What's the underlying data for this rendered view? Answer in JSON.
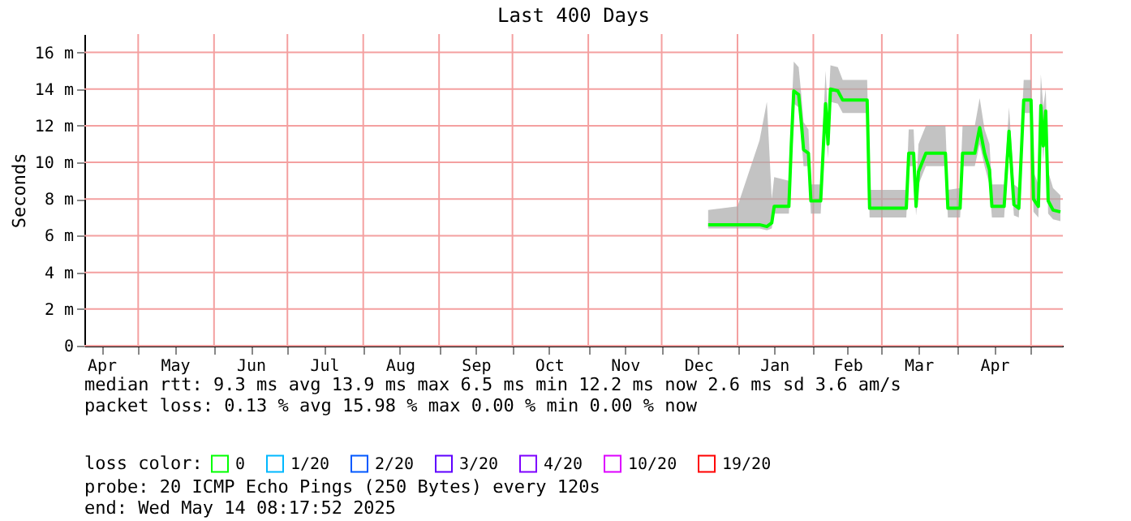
{
  "chart_data": {
    "type": "line",
    "title": "Last 400 Days",
    "ylabel": "Seconds",
    "legend_title": "loss color:",
    "legend": "bottom",
    "grid": true,
    "xlim": [
      "2024-04-09",
      "2025-05-14"
    ],
    "xticks": [
      {
        "value": "2024-04-16",
        "label": "Apr"
      },
      {
        "value": "2024-05-01",
        "label": null
      },
      {
        "value": "2024-05-16",
        "label": "May"
      },
      {
        "value": "2024-06-01",
        "label": null
      },
      {
        "value": "2024-06-16",
        "label": "Jun"
      },
      {
        "value": "2024-07-01",
        "label": null
      },
      {
        "value": "2024-07-16",
        "label": "Jul"
      },
      {
        "value": "2024-08-01",
        "label": null
      },
      {
        "value": "2024-08-16",
        "label": "Aug"
      },
      {
        "value": "2024-09-01",
        "label": null
      },
      {
        "value": "2024-09-16",
        "label": "Sep"
      },
      {
        "value": "2024-10-01",
        "label": null
      },
      {
        "value": "2024-10-16",
        "label": "Oct"
      },
      {
        "value": "2024-11-01",
        "label": null
      },
      {
        "value": "2024-11-16",
        "label": "Nov"
      },
      {
        "value": "2024-12-01",
        "label": null
      },
      {
        "value": "2024-12-16",
        "label": "Dec"
      },
      {
        "value": "2025-01-01",
        "label": null
      },
      {
        "value": "2025-01-16",
        "label": "Jan"
      },
      {
        "value": "2025-02-01",
        "label": null
      },
      {
        "value": "2025-02-15",
        "label": "Feb"
      },
      {
        "value": "2025-03-01",
        "label": null
      },
      {
        "value": "2025-03-16",
        "label": "Mar"
      },
      {
        "value": "2025-04-01",
        "label": null
      },
      {
        "value": "2025-04-16",
        "label": "Apr"
      },
      {
        "value": "2025-05-01",
        "label": null
      }
    ],
    "ylim": [
      0,
      17
    ],
    "yticks": [
      0,
      {
        "value": 2,
        "label": "2 m"
      },
      {
        "value": 4,
        "label": "4 m"
      },
      {
        "value": 6,
        "label": "6 m"
      },
      {
        "value": 8,
        "label": "8 m"
      },
      {
        "value": 10,
        "label": "10 m"
      },
      {
        "value": 12,
        "label": "12 m"
      },
      {
        "value": 14,
        "label": "14 m"
      },
      {
        "value": 16,
        "label": "16 m"
      }
    ],
    "series": [
      {
        "name": "0",
        "color": "#00ff00",
        "x": [
          "2024-12-20",
          "2025-01-01",
          "2025-01-10",
          "2025-01-13",
          "2025-01-15",
          "2025-01-16",
          "2025-01-22",
          "2025-01-23",
          "2025-01-24",
          "2025-01-26",
          "2025-01-27",
          "2025-01-28",
          "2025-01-30",
          "2025-01-31",
          "2025-02-04",
          "2025-02-05",
          "2025-02-06",
          "2025-02-07",
          "2025-02-08",
          "2025-02-11",
          "2025-02-13",
          "2025-02-23",
          "2025-02-24",
          "2025-03-05",
          "2025-03-11",
          "2025-03-12",
          "2025-03-14",
          "2025-03-15",
          "2025-03-16",
          "2025-03-19",
          "2025-03-27",
          "2025-03-28",
          "2025-04-02",
          "2025-04-03",
          "2025-04-08",
          "2025-04-10",
          "2025-04-12",
          "2025-04-14",
          "2025-04-15",
          "2025-04-20",
          "2025-04-22",
          "2025-04-24",
          "2025-04-26",
          "2025-04-28",
          "2025-05-01",
          "2025-05-02",
          "2025-05-04",
          "2025-05-05",
          "2025-05-06",
          "2025-05-07",
          "2025-05-08",
          "2025-05-10",
          "2025-05-13"
        ],
        "values": [
          6.6,
          6.6,
          6.6,
          6.5,
          6.7,
          7.6,
          7.6,
          11.0,
          13.9,
          13.7,
          12.3,
          10.7,
          10.5,
          7.9,
          7.9,
          10.6,
          13.2,
          11.0,
          14.0,
          13.9,
          13.4,
          13.4,
          7.5,
          7.5,
          7.5,
          10.5,
          10.5,
          7.6,
          9.5,
          10.5,
          10.5,
          7.5,
          7.5,
          10.5,
          10.5,
          11.9,
          10.5,
          9.6,
          7.6,
          7.6,
          11.7,
          7.7,
          7.5,
          13.4,
          13.4,
          8.0,
          7.6,
          13.1,
          10.9,
          12.8,
          7.9,
          7.4,
          7.3
        ],
        "lower": [
          6.4,
          6.4,
          6.4,
          6.3,
          6.4,
          7.2,
          7.2,
          10.2,
          13.2,
          13.0,
          11.5,
          9.8,
          9.8,
          7.2,
          7.2,
          9.8,
          12.3,
          10.2,
          13.3,
          13.2,
          12.7,
          12.7,
          7.0,
          7.0,
          7.0,
          9.8,
          9.8,
          7.1,
          8.8,
          9.8,
          9.8,
          7.0,
          7.0,
          9.8,
          9.8,
          11.0,
          9.8,
          8.8,
          7.0,
          7.0,
          11.0,
          7.1,
          7.0,
          12.7,
          12.7,
          7.3,
          7.0,
          12.3,
          10.1,
          12.0,
          7.2,
          6.9,
          6.8
        ],
        "upper": [
          7.4,
          7.6,
          11.2,
          13.3,
          8.0,
          9.2,
          9.0,
          12.5,
          15.5,
          15.2,
          13.8,
          12.2,
          11.8,
          8.8,
          8.8,
          12.0,
          15.0,
          12.5,
          15.3,
          15.2,
          14.5,
          14.5,
          8.5,
          8.5,
          8.5,
          11.8,
          11.8,
          8.6,
          11.0,
          12.0,
          12.0,
          8.5,
          8.6,
          12.0,
          12.0,
          13.5,
          11.8,
          11.0,
          8.8,
          8.8,
          13.0,
          8.8,
          8.6,
          14.5,
          14.5,
          9.5,
          8.8,
          14.8,
          13.0,
          14.0,
          9.5,
          8.6,
          8.2
        ]
      },
      {
        "name": "1/20",
        "color": "#00b8ff"
      },
      {
        "name": "2/20",
        "color": "#0059ff"
      },
      {
        "name": "3/20",
        "color": "#5e00ff"
      },
      {
        "name": "4/20",
        "color": "#7e00ff"
      },
      {
        "name": "10/20",
        "color": "#dd00ff"
      },
      {
        "name": "19/20",
        "color": "#ff0000"
      }
    ],
    "annotations": [
      "median rtt:  9.3 ms avg  13.9 ms max   6.5 ms min  12.2 ms now   2.6 ms sd  3.6   am/s",
      "packet loss: 0.13 % avg  15.98 % max   0.00 % min   0.00 % now",
      "probe:       20 ICMP Echo Pings (250 Bytes) every 120s",
      "end: Wed May 14 08:17:52 2025"
    ]
  }
}
